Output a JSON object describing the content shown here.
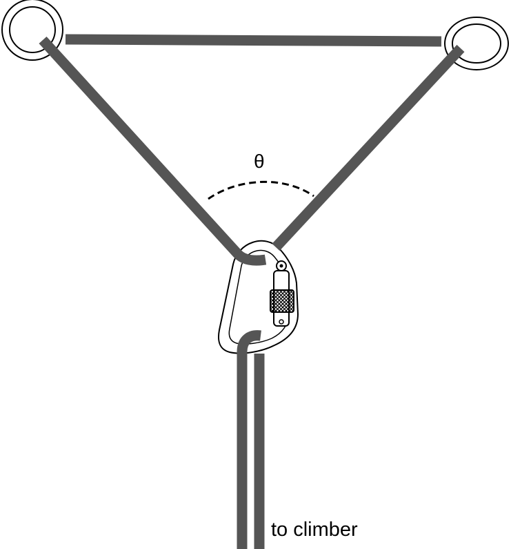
{
  "labels": {
    "angle": "θ",
    "climber": "to climber"
  },
  "colors": {
    "rope": "#555555",
    "outline": "#000000",
    "background": "#ffffff"
  },
  "icons": {
    "anchor_left": "anchor-ring-icon",
    "anchor_right": "anchor-ring-icon",
    "carabiner": "locking-carabiner-icon"
  }
}
